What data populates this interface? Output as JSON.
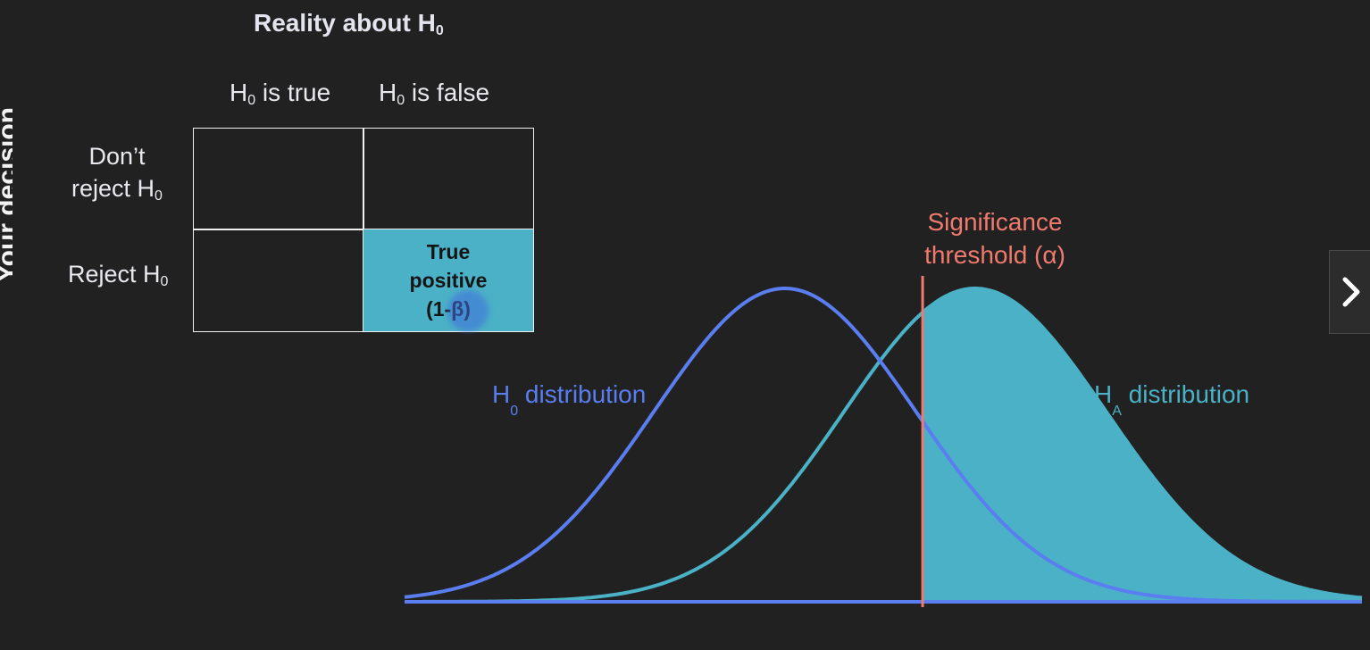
{
  "side_label": "Your decision",
  "reality_title": "Reality about H",
  "reality_title_sub": "0",
  "columns": [
    {
      "label": "H",
      "sub": "0",
      "suffix": " is true"
    },
    {
      "label": "H",
      "sub": "0",
      "suffix": " is false"
    }
  ],
  "rows": [
    {
      "line1": "Don’t",
      "line2": "reject H",
      "sub": "0"
    },
    {
      "line1": "",
      "line2": "Reject H",
      "sub": "0"
    }
  ],
  "true_positive": {
    "line1": "True",
    "line2": "positive",
    "line3": "(1-β)"
  },
  "chart_data": {
    "type": "area",
    "series": [
      {
        "name": "H0 distribution",
        "mean": 0,
        "sd": 1,
        "color": "#5a7ef0"
      },
      {
        "name": "HA distribution",
        "mean": 1.45,
        "sd": 1,
        "color": "#4bb1c6"
      }
    ],
    "x_range": [
      -2.9,
      4.4
    ],
    "threshold": 1.05,
    "shaded_region": "HA distribution area right of threshold"
  },
  "labels": {
    "h0_dist": {
      "main": "H",
      "sub": "0",
      "suffix": " distribution"
    },
    "ha_dist": {
      "main": "H",
      "sub": "A",
      "suffix": " distribution"
    },
    "threshold_line1": "Significance",
    "threshold_line2": "threshold (α)"
  },
  "colors": {
    "background": "#212121",
    "h0": "#5a7ef0",
    "ha": "#4bb1c6",
    "threshold": "#f07a6e"
  },
  "nav": {
    "next_icon": "chevron-right-icon"
  }
}
